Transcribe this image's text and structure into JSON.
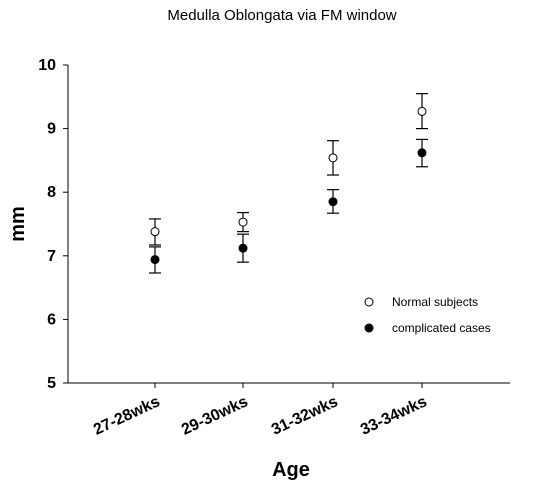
{
  "chart_data": {
    "type": "scatter",
    "title": "Medulla Oblongata via FM window",
    "xlabel": "Age",
    "ylabel": "mm",
    "categories": [
      "27-28wks",
      "29-30wks",
      "31-32wks",
      "33-34wks"
    ],
    "ylim": [
      5,
      10
    ],
    "yticks": [
      5,
      6,
      7,
      8,
      9,
      10
    ],
    "grid": false,
    "legend_position": "lower-right",
    "series": [
      {
        "name": "Normal subjects",
        "marker": "open-circle",
        "color": "#000000",
        "values": [
          7.38,
          7.53,
          8.54,
          9.27
        ],
        "error_low": [
          7.17,
          7.38,
          8.27,
          9.0
        ],
        "error_high": [
          7.58,
          7.68,
          8.81,
          9.55
        ]
      },
      {
        "name": "complicated cases",
        "marker": "filled-circle",
        "color": "#000000",
        "values": [
          6.94,
          7.12,
          7.85,
          8.62
        ],
        "error_low": [
          6.73,
          6.9,
          7.67,
          8.4
        ],
        "error_high": [
          7.14,
          7.34,
          8.04,
          8.83
        ]
      }
    ]
  }
}
